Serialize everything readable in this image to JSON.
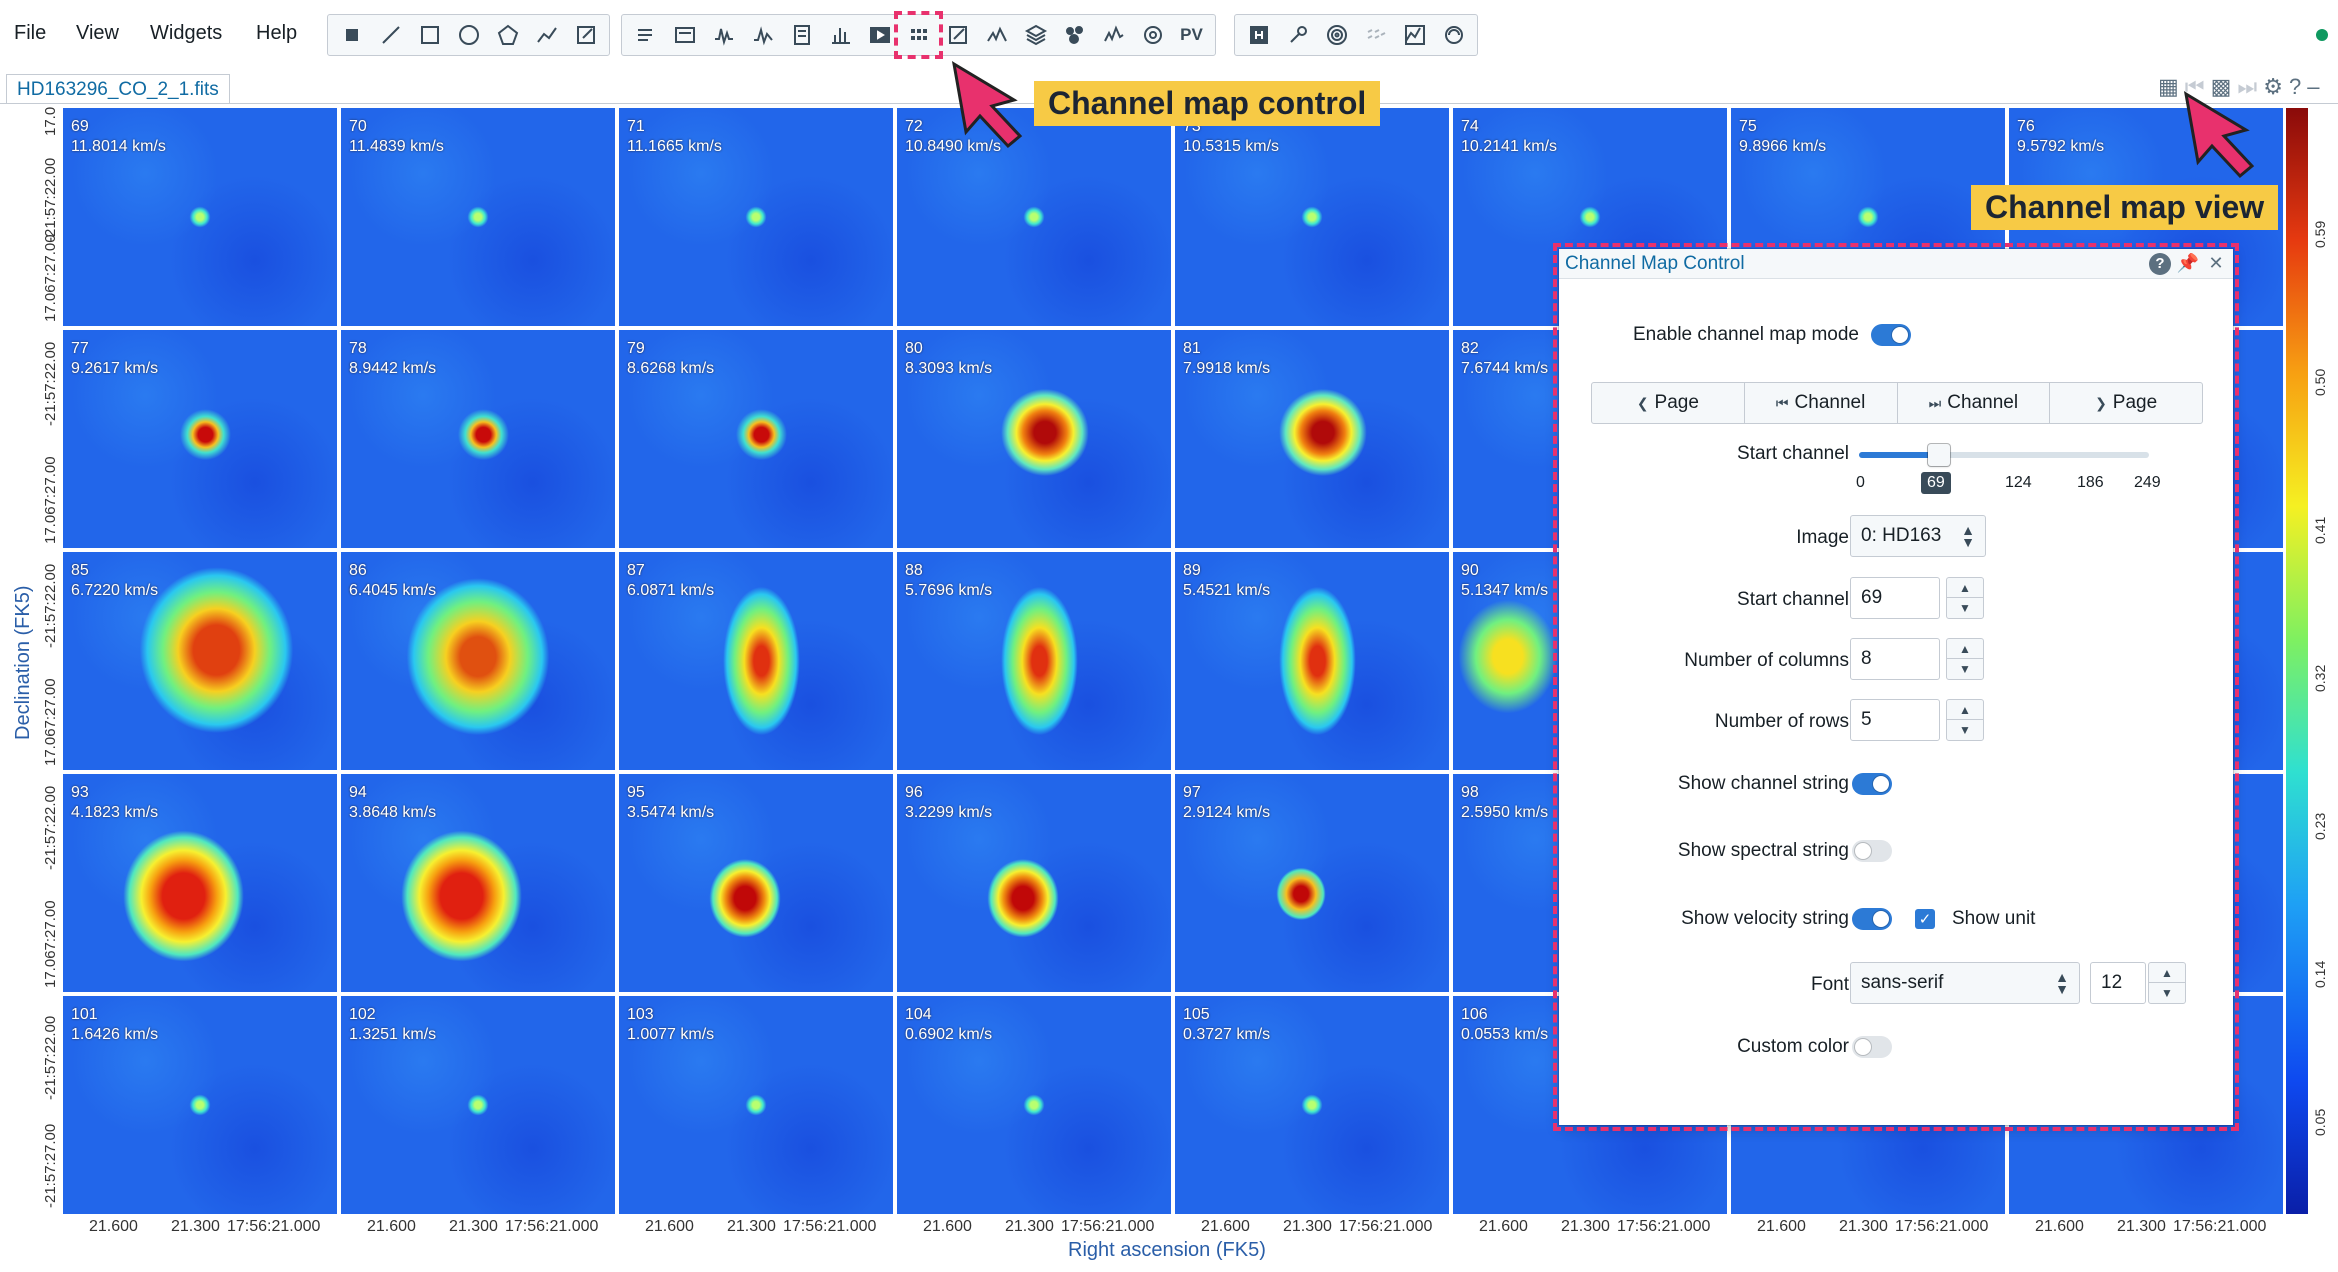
{
  "menu": {
    "items": [
      "File",
      "View",
      "Widgets",
      "Help"
    ]
  },
  "toolbar": {
    "pv_label": "PV"
  },
  "tab": {
    "label": "HD163296_CO_2_1.fits"
  },
  "callouts": {
    "control": "Channel map control",
    "view": "Channel map view"
  },
  "panels": [
    {
      "ch": "69",
      "vel": "11.8014 km/s"
    },
    {
      "ch": "70",
      "vel": "11.4839 km/s"
    },
    {
      "ch": "71",
      "vel": "11.1665 km/s"
    },
    {
      "ch": "72",
      "vel": "10.8490 km/s"
    },
    {
      "ch": "73",
      "vel": "10.5315 km/s"
    },
    {
      "ch": "74",
      "vel": "10.2141 km/s"
    },
    {
      "ch": "75",
      "vel": "9.8966 km/s"
    },
    {
      "ch": "76",
      "vel": "9.5792 km/s"
    },
    {
      "ch": "77",
      "vel": "9.2617 km/s"
    },
    {
      "ch": "78",
      "vel": "8.9442 km/s"
    },
    {
      "ch": "79",
      "vel": "8.6268 km/s"
    },
    {
      "ch": "80",
      "vel": "8.3093 km/s"
    },
    {
      "ch": "81",
      "vel": "7.9918 km/s"
    },
    {
      "ch": "82",
      "vel": "7.6744 km/s"
    },
    {
      "ch": "",
      "vel": ""
    },
    {
      "ch": "",
      "vel": ""
    },
    {
      "ch": "85",
      "vel": "6.7220 km/s"
    },
    {
      "ch": "86",
      "vel": "6.4045 km/s"
    },
    {
      "ch": "87",
      "vel": "6.0871 km/s"
    },
    {
      "ch": "88",
      "vel": "5.7696 km/s"
    },
    {
      "ch": "89",
      "vel": "5.4521 km/s"
    },
    {
      "ch": "90",
      "vel": "5.1347 km/s"
    },
    {
      "ch": "",
      "vel": ""
    },
    {
      "ch": "",
      "vel": ""
    },
    {
      "ch": "93",
      "vel": "4.1823 km/s"
    },
    {
      "ch": "94",
      "vel": "3.8648 km/s"
    },
    {
      "ch": "95",
      "vel": "3.5474 km/s"
    },
    {
      "ch": "96",
      "vel": "3.2299 km/s"
    },
    {
      "ch": "97",
      "vel": "2.9124 km/s"
    },
    {
      "ch": "98",
      "vel": "2.5950 km/s"
    },
    {
      "ch": "",
      "vel": ""
    },
    {
      "ch": "",
      "vel": ""
    },
    {
      "ch": "101",
      "vel": "1.6426 km/s"
    },
    {
      "ch": "102",
      "vel": "1.3251 km/s"
    },
    {
      "ch": "103",
      "vel": "1.0077 km/s"
    },
    {
      "ch": "104",
      "vel": "0.6902 km/s"
    },
    {
      "ch": "105",
      "vel": "0.3727 km/s"
    },
    {
      "ch": "106",
      "vel": "0.0553 km/s"
    },
    {
      "ch": "",
      "vel": ""
    },
    {
      "ch": "",
      "vel": ""
    }
  ],
  "axes": {
    "x_title": "Right ascension (FK5)",
    "y_title": "Declination (FK5)",
    "x_ticks": [
      "21.600",
      "21.300",
      "17:56:21.000"
    ],
    "y_ticks": [
      "17.0",
      "-21:57:22.00",
      "17.067:27.00"
    ],
    "y_ticks_last": [
      "-21:57:22.00",
      "-21:57:27.00"
    ],
    "colorbar_ticks": [
      "0.59",
      "0.50",
      "0.41",
      "0.32",
      "0.23",
      "0.14",
      "0.05"
    ]
  },
  "dialog": {
    "title": "Channel Map Control",
    "enable_label": "Enable channel map mode",
    "nav": [
      "Page",
      "Channel",
      "Channel",
      "Page"
    ],
    "start_channel_label": "Start channel",
    "slider": {
      "min": 0,
      "max": 249,
      "value": 69,
      "ticks": [
        "0",
        "124",
        "186",
        "249"
      ],
      "current_label": "69"
    },
    "image_label": "Image",
    "image_value": "0: HD163",
    "start_channel_value": "69",
    "columns_label": "Number of columns",
    "columns_value": "8",
    "rows_label": "Number of rows",
    "rows_value": "5",
    "show_channel_label": "Show channel string",
    "show_spectral_label": "Show spectral string",
    "show_velocity_label": "Show velocity string",
    "show_unit_label": "Show unit",
    "font_label": "Font",
    "font_value": "sans-serif",
    "font_size_value": "12",
    "custom_color_label": "Custom color"
  },
  "colors": {
    "accent": "#2c7ad6",
    "highlight": "#e8316d",
    "callout": "#f7ca45"
  }
}
